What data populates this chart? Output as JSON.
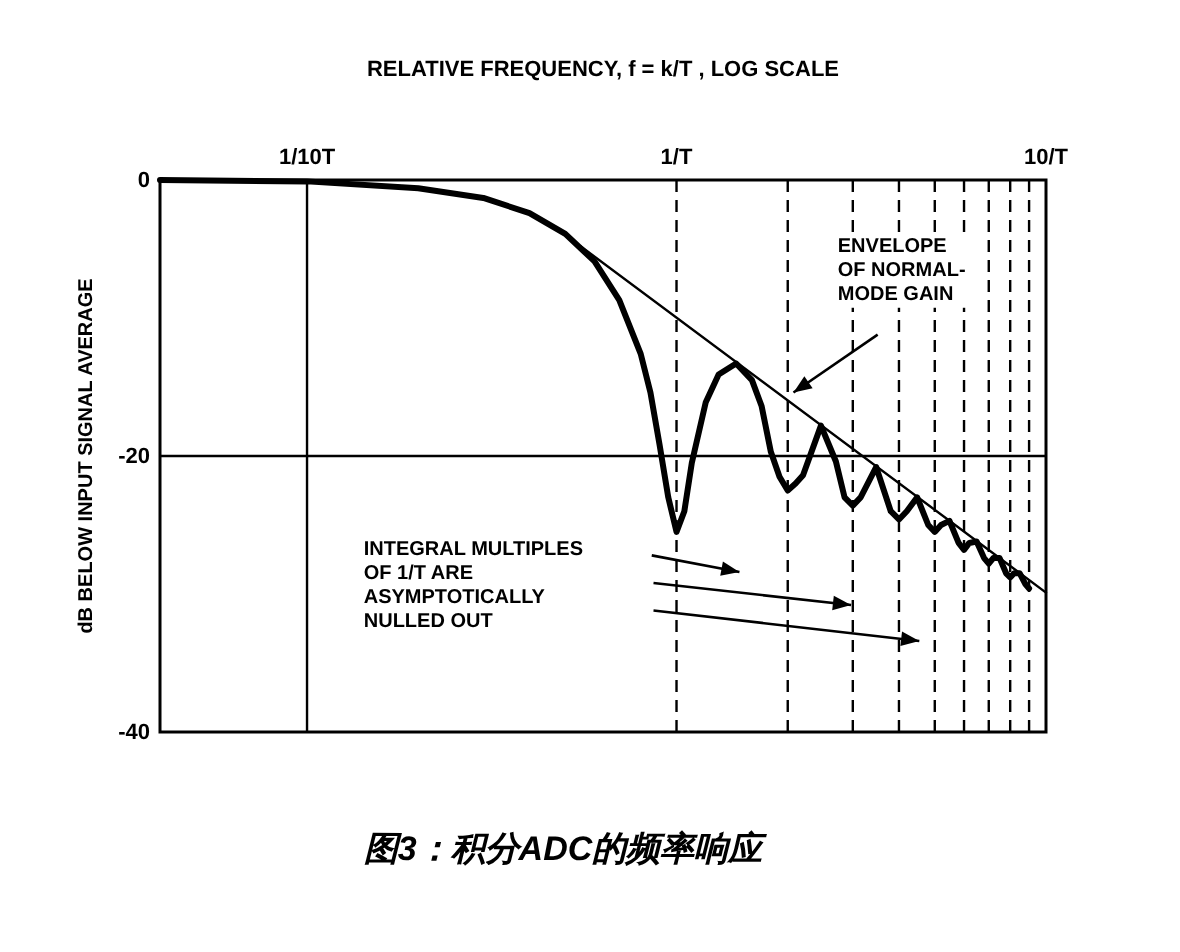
{
  "chart_data": {
    "type": "line",
    "xlabel": "RELATIVE FREQUENCY, f = k/T , LOG SCALE",
    "ylabel": "dB BELOW INPUT SIGNAL AVERAGE",
    "log": "x",
    "xlim": [
      0.04,
      10
    ],
    "xticks": [
      {
        "value": 0.1,
        "label": "1/10T"
      },
      {
        "value": 1,
        "label": "1/T"
      },
      {
        "value": 10,
        "label": "10/T"
      }
    ],
    "ylim": [
      -40,
      0
    ],
    "yticks": [
      0,
      -20,
      -40
    ],
    "grid": false,
    "marker": "none",
    "series": [
      {
        "color": "#000000",
        "line_style": "solid",
        "x": [
          0.04,
          0.1,
          0.2,
          0.3,
          0.4,
          0.5,
          0.6,
          0.7,
          0.8,
          0.85,
          0.9,
          0.95,
          1,
          1.05,
          1.1,
          1.2,
          1.3,
          1.45,
          1.6,
          1.7,
          1.8,
          1.9,
          2,
          2.1,
          2.2,
          2.46,
          2.7,
          2.85,
          3,
          3.15,
          3.47,
          3.8,
          4,
          4.2,
          4.48,
          4.8,
          5,
          5.2,
          5.48,
          5.8,
          6,
          6.2,
          6.49,
          6.8,
          7,
          7.2,
          7.49,
          7.8,
          8,
          8.2,
          8.49,
          8.8,
          9
        ],
        "values": [
          0,
          -0.1,
          -0.6,
          -1.3,
          -2.4,
          -3.9,
          -5.9,
          -8.7,
          -12.6,
          -15.4,
          -19.2,
          -23,
          -25.5,
          -24,
          -20.5,
          -16.1,
          -14.1,
          -13.3,
          -14.5,
          -16.4,
          -19.7,
          -21.5,
          -22.5,
          -22,
          -21.4,
          -17.8,
          -20.4,
          -23,
          -23.6,
          -23,
          -20.8,
          -24,
          -24.6,
          -24,
          -23,
          -25,
          -25.5,
          -25,
          -24.7,
          -26.3,
          -26.8,
          -26.3,
          -26.2,
          -27.4,
          -27.8,
          -27.4,
          -27.4,
          -28.5,
          -28.8,
          -28.5,
          -28.5,
          -29.3,
          -29.6
        ]
      },
      {
        "color": "#000000",
        "line_style": "solid",
        "x": [
          0.55,
          10
        ],
        "values": [
          -4.8,
          -29.9
        ]
      }
    ],
    "ref_lines": [
      {
        "axis": "x",
        "value": 0.1,
        "line_style": "solid"
      },
      {
        "axis": "y",
        "value": -20,
        "line_style": "solid"
      },
      {
        "axis": "x",
        "value": 1,
        "line_style": "dashed"
      },
      {
        "axis": "x",
        "value": 2,
        "line_style": "dashed"
      },
      {
        "axis": "x",
        "value": 3,
        "line_style": "dashed"
      },
      {
        "axis": "x",
        "value": 4,
        "line_style": "dashed"
      },
      {
        "axis": "x",
        "value": 5,
        "line_style": "dashed"
      },
      {
        "axis": "x",
        "value": 6,
        "line_style": "dashed"
      },
      {
        "axis": "x",
        "value": 7,
        "line_style": "dashed"
      },
      {
        "axis": "x",
        "value": 8,
        "line_style": "dashed"
      },
      {
        "axis": "x",
        "value": 9,
        "line_style": "dashed"
      }
    ],
    "annotations": [
      "ENVELOPE\nOF NORMAL-\nMODE GAIN",
      "INTEGRAL MULTIPLES\nOF 1/T ARE\nASYMPTOTICALLY\nNULLED OUT",
      "图3：积分ADC的频率响应"
    ]
  }
}
